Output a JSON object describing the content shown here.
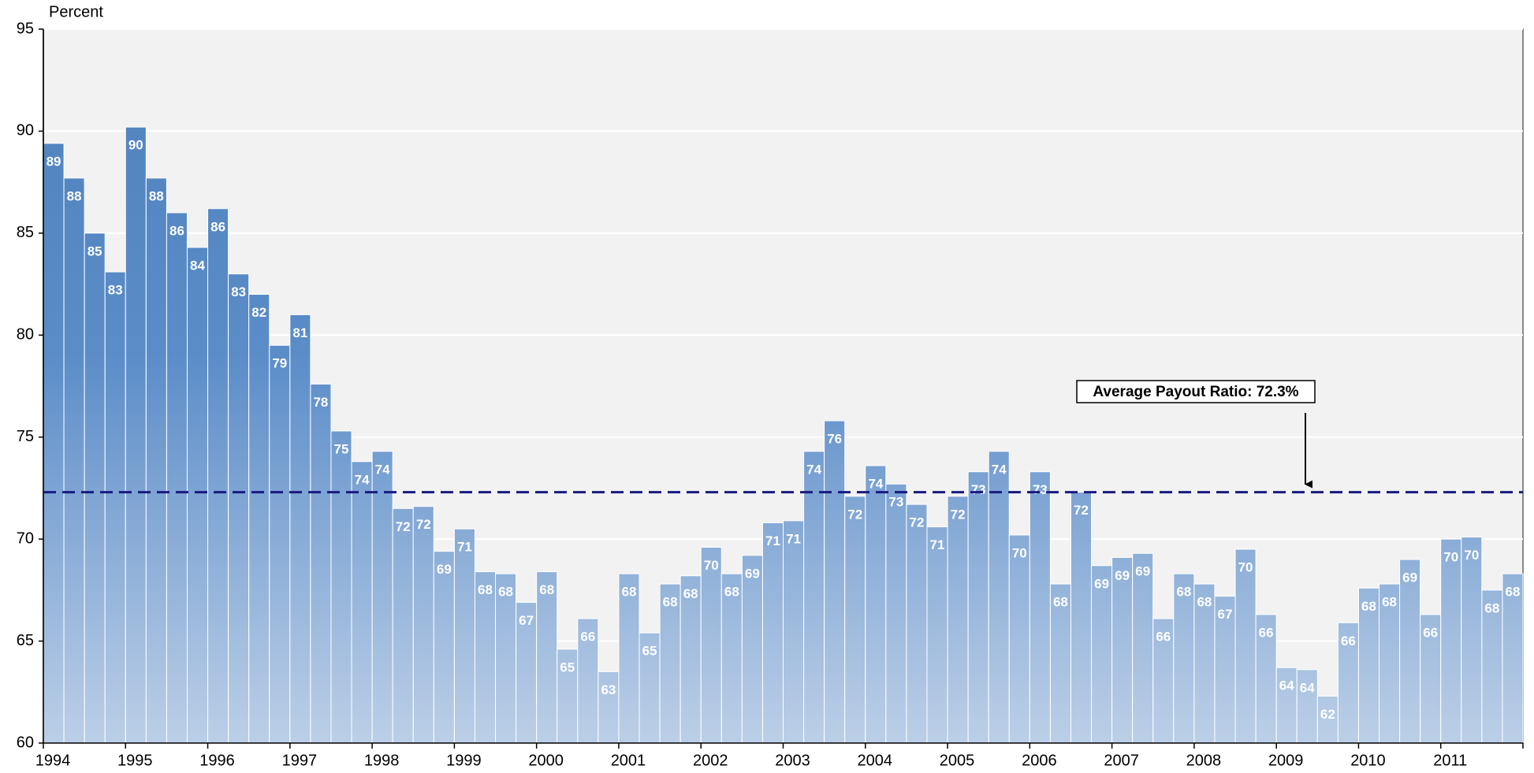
{
  "chart_data": {
    "type": "bar",
    "y_label": "Percent",
    "categories": [
      "1994",
      null,
      null,
      null,
      "1995",
      null,
      null,
      null,
      "1996",
      null,
      null,
      null,
      "1997",
      null,
      null,
      null,
      "1998",
      null,
      null,
      null,
      "1999",
      null,
      null,
      null,
      "2000",
      null,
      null,
      null,
      "2001",
      null,
      null,
      null,
      "2002",
      null,
      null,
      null,
      "2003",
      null,
      null,
      null,
      "2004",
      null,
      null,
      null,
      "2005",
      null,
      null,
      null,
      "2006",
      null,
      null,
      null,
      "2007",
      null,
      null,
      null,
      "2008",
      null,
      null,
      null,
      "2009",
      null,
      null,
      null,
      "2010",
      null,
      null,
      null,
      "2011",
      null,
      null,
      null
    ],
    "values": [
      89.4,
      87.7,
      85.0,
      83.1,
      90.2,
      87.7,
      86.0,
      84.3,
      86.2,
      83.0,
      82.0,
      79.5,
      81.0,
      77.6,
      75.3,
      73.8,
      74.3,
      71.5,
      71.6,
      69.4,
      70.5,
      68.4,
      68.3,
      66.9,
      68.4,
      64.6,
      66.1,
      63.5,
      68.3,
      65.4,
      67.8,
      68.2,
      69.6,
      68.3,
      69.2,
      70.8,
      70.9,
      74.3,
      75.8,
      72.1,
      73.6,
      72.7,
      71.7,
      70.6,
      72.1,
      73.3,
      74.3,
      70.2,
      73.3,
      67.8,
      72.3,
      68.7,
      69.1,
      69.3,
      66.1,
      68.3,
      67.8,
      67.2,
      69.5,
      66.3,
      63.7,
      63.6,
      62.3,
      65.9,
      67.6,
      67.8,
      69.0,
      66.3,
      70.0,
      70.1,
      67.5,
      68.3
    ],
    "value_labels": [
      "89",
      "88",
      "85",
      "83",
      "90",
      "88",
      "86",
      "84",
      "86",
      "83",
      "82",
      "79",
      "81",
      "78",
      "75",
      "74",
      "74",
      "72",
      "72",
      "69",
      "71",
      "68",
      "68",
      "67",
      "68",
      "65",
      "66",
      "63",
      "68",
      "65",
      "68",
      "68",
      "70",
      "68",
      "69",
      "71",
      "71",
      "74",
      "76",
      "72",
      "74",
      "73",
      "72",
      "71",
      "72",
      "73",
      "74",
      "70",
      "73",
      "68",
      "72",
      "69",
      "69",
      "69",
      "66",
      "68",
      "68",
      "67",
      "70",
      "66",
      "64",
      "64",
      "62",
      "66",
      "68",
      "68",
      "69",
      "66",
      "70",
      "70",
      "68",
      "68"
    ],
    "color": "#4f81bd",
    "average": 72.3,
    "average_label": "Average Payout Ratio: 72.3%",
    "ylim": [
      60,
      95
    ],
    "yticks": [
      60,
      65,
      70,
      75,
      80,
      85,
      90,
      95
    ],
    "grid": true
  }
}
